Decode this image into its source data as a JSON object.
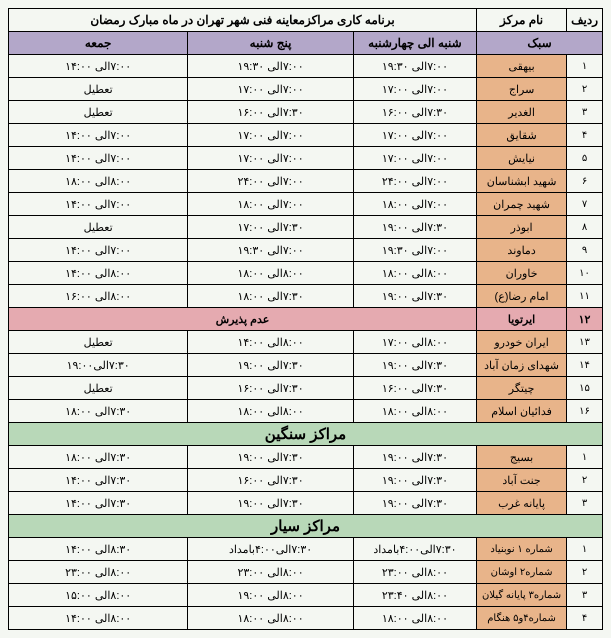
{
  "header": {
    "radif": "ردیف",
    "name": "نام مرکز",
    "schedule_title": "برنامه کاری مراکزمعاینه فنی شهر تهران در ماه مبارک رمضان"
  },
  "cols": {
    "type": "سبک",
    "sat_wed": "شنبه الی چهارشنبه",
    "thu": "پنج شنبه",
    "fri": "جمعه"
  },
  "section_heavy": "مراکز سنگین",
  "section_mobile": "مراکز سیار",
  "no_accept": "عدم پذیرش",
  "light": [
    {
      "n": "۱",
      "name": "بیهقی",
      "a": "۷:۰۰الی ۱۹:۳۰",
      "b": "۷:۰۰الی ۱۹:۳۰",
      "c": "۷:۰۰الی ۱۴:۰۰"
    },
    {
      "n": "۲",
      "name": "سراج",
      "a": "۷:۰۰الی ۱۷:۰۰",
      "b": "۷:۰۰الی ۱۷:۰۰",
      "c": "تعطیل"
    },
    {
      "n": "۳",
      "name": "الغدیر",
      "a": "۷:۳۰الی ۱۶:۰۰",
      "b": "۷:۳۰الی ۱۶:۰۰",
      "c": "تعطیل"
    },
    {
      "n": "۴",
      "name": "شقایق",
      "a": "۷:۰۰الی ۱۷:۰۰",
      "b": "۷:۰۰الی ۱۷:۰۰",
      "c": "۷:۰۰الی ۱۴:۰۰"
    },
    {
      "n": "۵",
      "name": "نیایش",
      "a": "۷:۰۰الی ۱۷:۰۰",
      "b": "۷:۰۰الی ۱۷:۰۰",
      "c": "۷:۰۰الی ۱۴:۰۰"
    },
    {
      "n": "۶",
      "name": "شهید ابشناسان",
      "a": "۷:۰۰الی ۲۴:۰۰",
      "b": "۷:۰۰الی ۲۴:۰۰",
      "c": "۸:۰۰الی ۱۸:۰۰"
    },
    {
      "n": "۷",
      "name": "شهید چمران",
      "a": "۷:۰۰الی ۱۸:۰۰",
      "b": "۷:۰۰الی ۱۸:۰۰",
      "c": "۷:۰۰الی ۱۴:۰۰"
    },
    {
      "n": "۸",
      "name": "ابوذر",
      "a": "۷:۳۰الی ۱۹:۰۰",
      "b": "۷:۳۰الی ۱۷:۰۰",
      "c": "تعطیل"
    },
    {
      "n": "۹",
      "name": "دماوند",
      "a": "۷:۰۰الی ۱۹:۳۰",
      "b": "۷:۰۰الی ۱۹:۳۰",
      "c": "۷:۰۰الی ۱۴:۰۰"
    },
    {
      "n": "۱۰",
      "name": "خاوران",
      "a": "۸:۰۰الی ۱۸:۰۰",
      "b": "۸:۰۰الی ۱۸:۰۰",
      "c": "۸:۰۰الی ۱۴:۰۰"
    },
    {
      "n": "۱۱",
      "name": "امام رضا(ع)",
      "a": "۷:۳۰الی ۱۹:۰۰",
      "b": "۷:۳۰الی ۱۸:۰۰",
      "c": "۸:۰۰الی ۱۶:۰۰"
    }
  ],
  "light2_header_name": "ایرتویا",
  "light2_header_n": "۱۲",
  "light2": [
    {
      "n": "۱۳",
      "name": "ایران خودرو",
      "a": "۸:۰۰الی ۱۷:۰۰",
      "b": "۸:۰۰الی ۱۴:۰۰",
      "c": "تعطیل"
    },
    {
      "n": "۱۴",
      "name": "شهدای زمان آباد",
      "a": "۷:۳۰الی ۱۹:۰۰",
      "b": "۷:۳۰الی ۱۹:۰۰",
      "c": "۷:۳۰الی۱۹:۰۰"
    },
    {
      "n": "۱۵",
      "name": "چیتگر",
      "a": "۷:۳۰الی ۱۶:۰۰",
      "b": "۷:۳۰الی ۱۶:۰۰",
      "c": "تعطیل"
    },
    {
      "n": "۱۶",
      "name": "فدائیان اسلام",
      "a": "۸:۰۰الی ۱۸:۰۰",
      "b": "۸:۰۰الی ۱۸:۰۰",
      "c": "۷:۳۰الی ۱۸:۰۰"
    }
  ],
  "heavy": [
    {
      "n": "۱",
      "name": "بسیج",
      "a": "۷:۳۰الی ۱۹:۰۰",
      "b": "۷:۳۰الی ۱۹:۰۰",
      "c": "۷:۳۰الی ۱۸:۰۰"
    },
    {
      "n": "۲",
      "name": "جنت آباد",
      "a": "۷:۳۰الی ۱۹:۰۰",
      "b": "۷:۳۰الی ۱۶:۰۰",
      "c": "۷:۳۰الی ۱۴:۰۰"
    },
    {
      "n": "۳",
      "name": "پایانه غرب",
      "a": "۷:۳۰الی ۱۹:۰۰",
      "b": "۷:۳۰الی ۱۹:۰۰",
      "c": "۷:۳۰الی ۱۴:۰۰"
    }
  ],
  "mobile": [
    {
      "n": "۱",
      "name": "شماره ۱ نوبنیاد",
      "a": "۷:۳۰الی۴:۰۰بامداد",
      "b": "۷:۳۰الی۴:۰۰بامداد",
      "c": "۸:۳۰الی ۱۴:۰۰"
    },
    {
      "n": "۲",
      "name": "شماره۲ اوشان",
      "a": "۸:۰۰الی ۲۳:۰۰",
      "b": "۸:۰۰الی ۲۳:۰۰",
      "c": "۸:۰۰الی ۲۳:۰۰"
    },
    {
      "n": "۳",
      "name": "شماره۳ پایانه گیلان",
      "a": "۸:۰۰الی ۲۳:۴۰",
      "b": "۸:۰۰الی ۱۹:۰۰",
      "c": "۸:۰۰الی ۱۵:۰۰"
    },
    {
      "n": "۴",
      "name": "شماره۴و۵ هنگام",
      "a": "۸:۰۰الی ۱۸:۰۰",
      "b": "۸:۰۰الی ۱۸:۰۰",
      "c": "۸:۰۰الی ۱۴:۰۰"
    }
  ]
}
